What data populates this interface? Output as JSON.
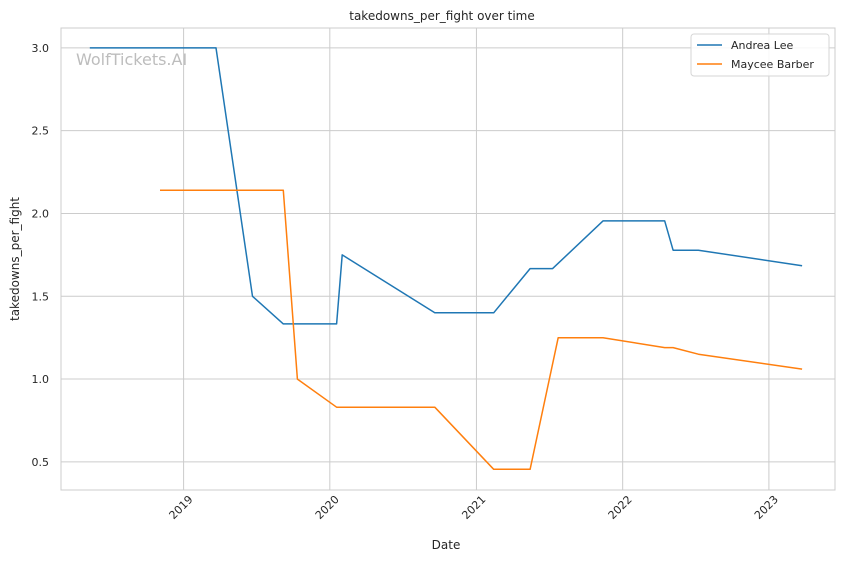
{
  "chart_data": {
    "type": "line",
    "title": "takedowns_per_fight over time",
    "xlabel": "Date",
    "ylabel": "takedowns_per_fight",
    "watermark": "WolfTickets.AI",
    "x_ticks": [
      "2019",
      "2020",
      "2021",
      "2022",
      "2023"
    ],
    "y_ticks": [
      "0.5",
      "1.0",
      "1.5",
      "2.0",
      "2.5",
      "3.0"
    ],
    "xlim": [
      "2018-03-01",
      "2023-06-15"
    ],
    "ylim": [
      0.33,
      3.12
    ],
    "grid": true,
    "legend_position": "top-right",
    "series": [
      {
        "name": "Andrea Lee",
        "color": "#1f77b4",
        "points": [
          [
            "2018-05-12",
            3.0
          ],
          [
            "2019-03-23",
            3.0
          ],
          [
            "2019-06-22",
            1.5
          ],
          [
            "2019-09-07",
            1.333
          ],
          [
            "2020-01-18",
            1.333
          ],
          [
            "2020-02-01",
            1.75
          ],
          [
            "2020-09-19",
            1.4
          ],
          [
            "2021-02-13",
            1.4
          ],
          [
            "2021-05-15",
            1.667
          ],
          [
            "2021-07-10",
            1.667
          ],
          [
            "2021-11-13",
            1.955
          ],
          [
            "2022-04-16",
            1.955
          ],
          [
            "2022-05-07",
            1.778
          ],
          [
            "2022-07-09",
            1.778
          ],
          [
            "2023-03-25",
            1.684
          ]
        ]
      },
      {
        "name": "Maycee Barber",
        "color": "#ff7f0e",
        "points": [
          [
            "2018-11-03",
            2.14
          ],
          [
            "2019-09-07",
            2.14
          ],
          [
            "2019-10-12",
            1.0
          ],
          [
            "2020-01-18",
            0.83
          ],
          [
            "2020-09-19",
            0.83
          ],
          [
            "2021-02-13",
            0.455
          ],
          [
            "2021-05-15",
            0.455
          ],
          [
            "2021-07-24",
            1.25
          ],
          [
            "2021-11-13",
            1.25
          ],
          [
            "2022-04-16",
            1.19
          ],
          [
            "2022-05-07",
            1.19
          ],
          [
            "2022-07-09",
            1.15
          ],
          [
            "2023-03-25",
            1.06
          ]
        ]
      }
    ]
  }
}
